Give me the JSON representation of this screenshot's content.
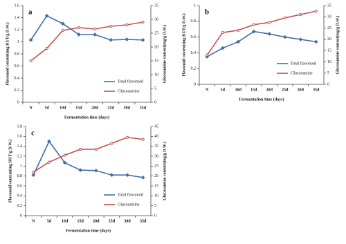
{
  "chart_data": [
    {
      "type": "line",
      "panel_label": "a",
      "categories": [
        "N",
        "5d",
        "10d",
        "15d",
        "20d",
        "25d",
        "30d",
        "35d"
      ],
      "x_label": "Fermentation time (days)",
      "y_label": "Flavonoid content(mg RUT/g D.W.)",
      "y2_label": "Glucosamine content(mg/g D.W.)",
      "ylim": [
        0,
        1.6
      ],
      "yticks": [
        0,
        0.2,
        0.4,
        0.6,
        0.8,
        1,
        1.2,
        1.4,
        1.6
      ],
      "y2lim": [
        0,
        35
      ],
      "y2ticks": [
        0,
        5,
        10,
        15,
        20,
        25,
        30,
        35
      ],
      "series": [
        {
          "name": "Total flavonoid",
          "color": "#3e6fa5",
          "values": [
            1.03,
            1.43,
            1.3,
            1.12,
            1.12,
            1.03,
            1.04,
            1.03
          ]
        },
        {
          "name": "Glucosamine",
          "color": "#c0504d",
          "axis": "y2",
          "values": [
            15,
            19.5,
            26,
            27,
            26.5,
            27.5,
            28,
            29
          ]
        }
      ]
    },
    {
      "type": "line",
      "panel_label": "b",
      "categories": [
        "N",
        "5d",
        "10d",
        "15d",
        "20d",
        "25d",
        "30d",
        "35d"
      ],
      "x_label": "Fermentation time (days)",
      "y_label": "Flavonoid content(mg RUT/g D.W.)",
      "y2_label": "Glucosamine content(mg/g D.W.)",
      "ylim": [
        0,
        1
      ],
      "yticks": [
        0,
        0.2,
        0.4,
        0.6,
        0.8,
        1
      ],
      "y2lim": [
        0,
        35
      ],
      "y2ticks": [
        0,
        5,
        10,
        15,
        20,
        25,
        30,
        35
      ],
      "series": [
        {
          "name": "Total flavonoid",
          "color": "#3e6fa5",
          "values": [
            0.35,
            0.46,
            0.54,
            0.67,
            0.64,
            0.6,
            0.57,
            0.54
          ]
        },
        {
          "name": "Glucosamine",
          "color": "#c0504d",
          "axis": "y2",
          "values": [
            13,
            23,
            24,
            26.5,
            27.5,
            29.5,
            31,
            32.5
          ]
        }
      ]
    },
    {
      "type": "line",
      "panel_label": "c",
      "categories": [
        "N",
        "5d",
        "10d",
        "15d",
        "20d",
        "25d",
        "30d",
        "35d"
      ],
      "x_label": "Fermentation time (days)",
      "y_label": "Flavonoid content(mg RUT/g D.W.)",
      "y2_label": "Glucosamine content(mg/g D.W.)",
      "ylim": [
        0,
        1.8
      ],
      "yticks": [
        0,
        0.2,
        0.4,
        0.6,
        0.8,
        1,
        1.2,
        1.4,
        1.6,
        1.8
      ],
      "y2lim": [
        0,
        45
      ],
      "y2ticks": [
        0,
        5,
        10,
        15,
        20,
        25,
        30,
        35,
        40,
        45
      ],
      "series": [
        {
          "name": "Total flavonoid",
          "color": "#3e6fa5",
          "values": [
            0.82,
            1.5,
            1.07,
            0.92,
            0.91,
            0.82,
            0.82,
            0.77
          ]
        },
        {
          "name": "Glucosamine",
          "color": "#c0504d",
          "axis": "y2",
          "values": [
            22,
            27,
            30.5,
            33.5,
            33.5,
            36.5,
            39.5,
            38.5
          ]
        }
      ]
    }
  ]
}
